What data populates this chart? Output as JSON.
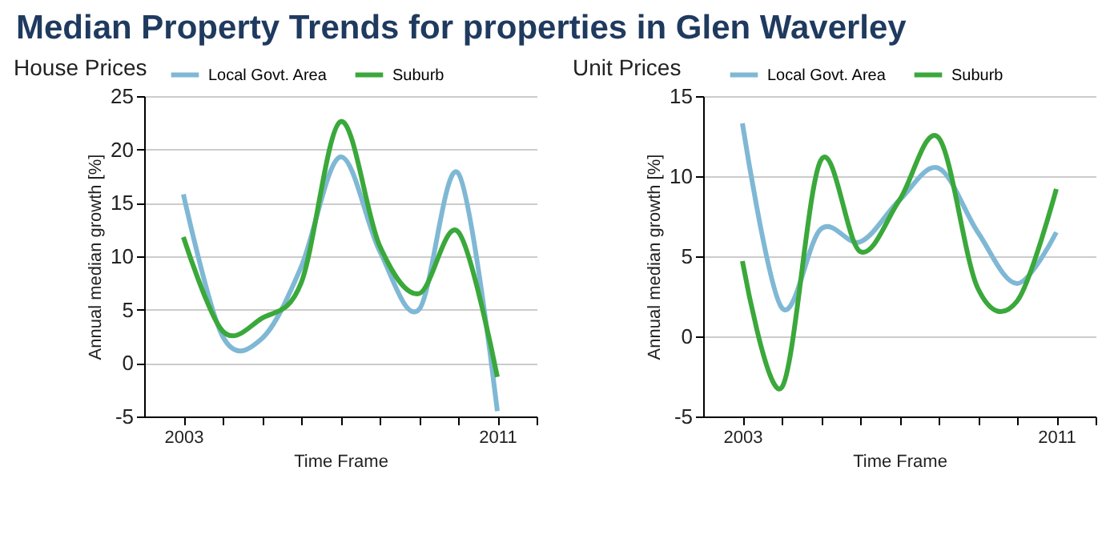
{
  "chart_data": [
    {
      "type": "line",
      "title": "Median Property Trends for properties in Glen Waverley",
      "subtitle": "House Prices",
      "xlabel": "Time Frame",
      "ylabel": "Annual median growth [%]",
      "x": [
        2003,
        2004,
        2005,
        2006,
        2007,
        2008,
        2009,
        2010,
        2011
      ],
      "series": [
        {
          "name": "Local Govt. Area",
          "color": "#7fb8d4",
          "values": [
            15.8,
            2.5,
            2.3,
            9,
            19.3,
            10.5,
            5,
            17.8,
            -4.5
          ]
        },
        {
          "name": "Suburb",
          "color": "#3aa83a",
          "values": [
            11.8,
            3,
            4.2,
            7.5,
            22.6,
            11,
            6.5,
            12.3,
            -1.3
          ]
        }
      ],
      "xlim": [
        2002,
        2012
      ],
      "xticks": [
        {
          "value": 2003,
          "label": "2003"
        },
        {
          "value": 2004,
          "label": null
        },
        {
          "value": 2005,
          "label": null
        },
        {
          "value": 2006,
          "label": null
        },
        {
          "value": 2007,
          "label": null
        },
        {
          "value": 2008,
          "label": null
        },
        {
          "value": 2009,
          "label": null
        },
        {
          "value": 2010,
          "label": null
        },
        {
          "value": 2011,
          "label": "2011"
        },
        {
          "value": 2012,
          "label": null
        }
      ],
      "ylim": [
        -5,
        25
      ],
      "yticks": [
        -5,
        0,
        5,
        10,
        15,
        20,
        25
      ],
      "grid": "y",
      "legend": "top",
      "marker": "none"
    },
    {
      "type": "line",
      "subtitle": "Unit Prices",
      "xlabel": "Time Frame",
      "ylabel": "Annual median growth [%]",
      "x": [
        2003,
        2004,
        2005,
        2006,
        2007,
        2008,
        2009,
        2010,
        2011
      ],
      "series": [
        {
          "name": "Local Govt. Area",
          "color": "#7fb8d4",
          "values": [
            13.3,
            1.8,
            6.7,
            5.9,
            8.5,
            10.5,
            6.5,
            3.3,
            6.5
          ]
        },
        {
          "name": "Suburb",
          "color": "#3aa83a",
          "values": [
            4.7,
            -3.2,
            11,
            5.3,
            8.5,
            12.4,
            3,
            2.2,
            9.2
          ]
        }
      ],
      "xlim": [
        2002,
        2012
      ],
      "xticks": [
        {
          "value": 2003,
          "label": "2003"
        },
        {
          "value": 2004,
          "label": null
        },
        {
          "value": 2005,
          "label": null
        },
        {
          "value": 2006,
          "label": null
        },
        {
          "value": 2007,
          "label": null
        },
        {
          "value": 2008,
          "label": null
        },
        {
          "value": 2009,
          "label": null
        },
        {
          "value": 2010,
          "label": null
        },
        {
          "value": 2011,
          "label": "2011"
        },
        {
          "value": 2012,
          "label": null
        }
      ],
      "ylim": [
        -5,
        15
      ],
      "yticks": [
        -5,
        0,
        5,
        10,
        15
      ],
      "grid": "y",
      "legend": "top",
      "marker": "none"
    }
  ]
}
